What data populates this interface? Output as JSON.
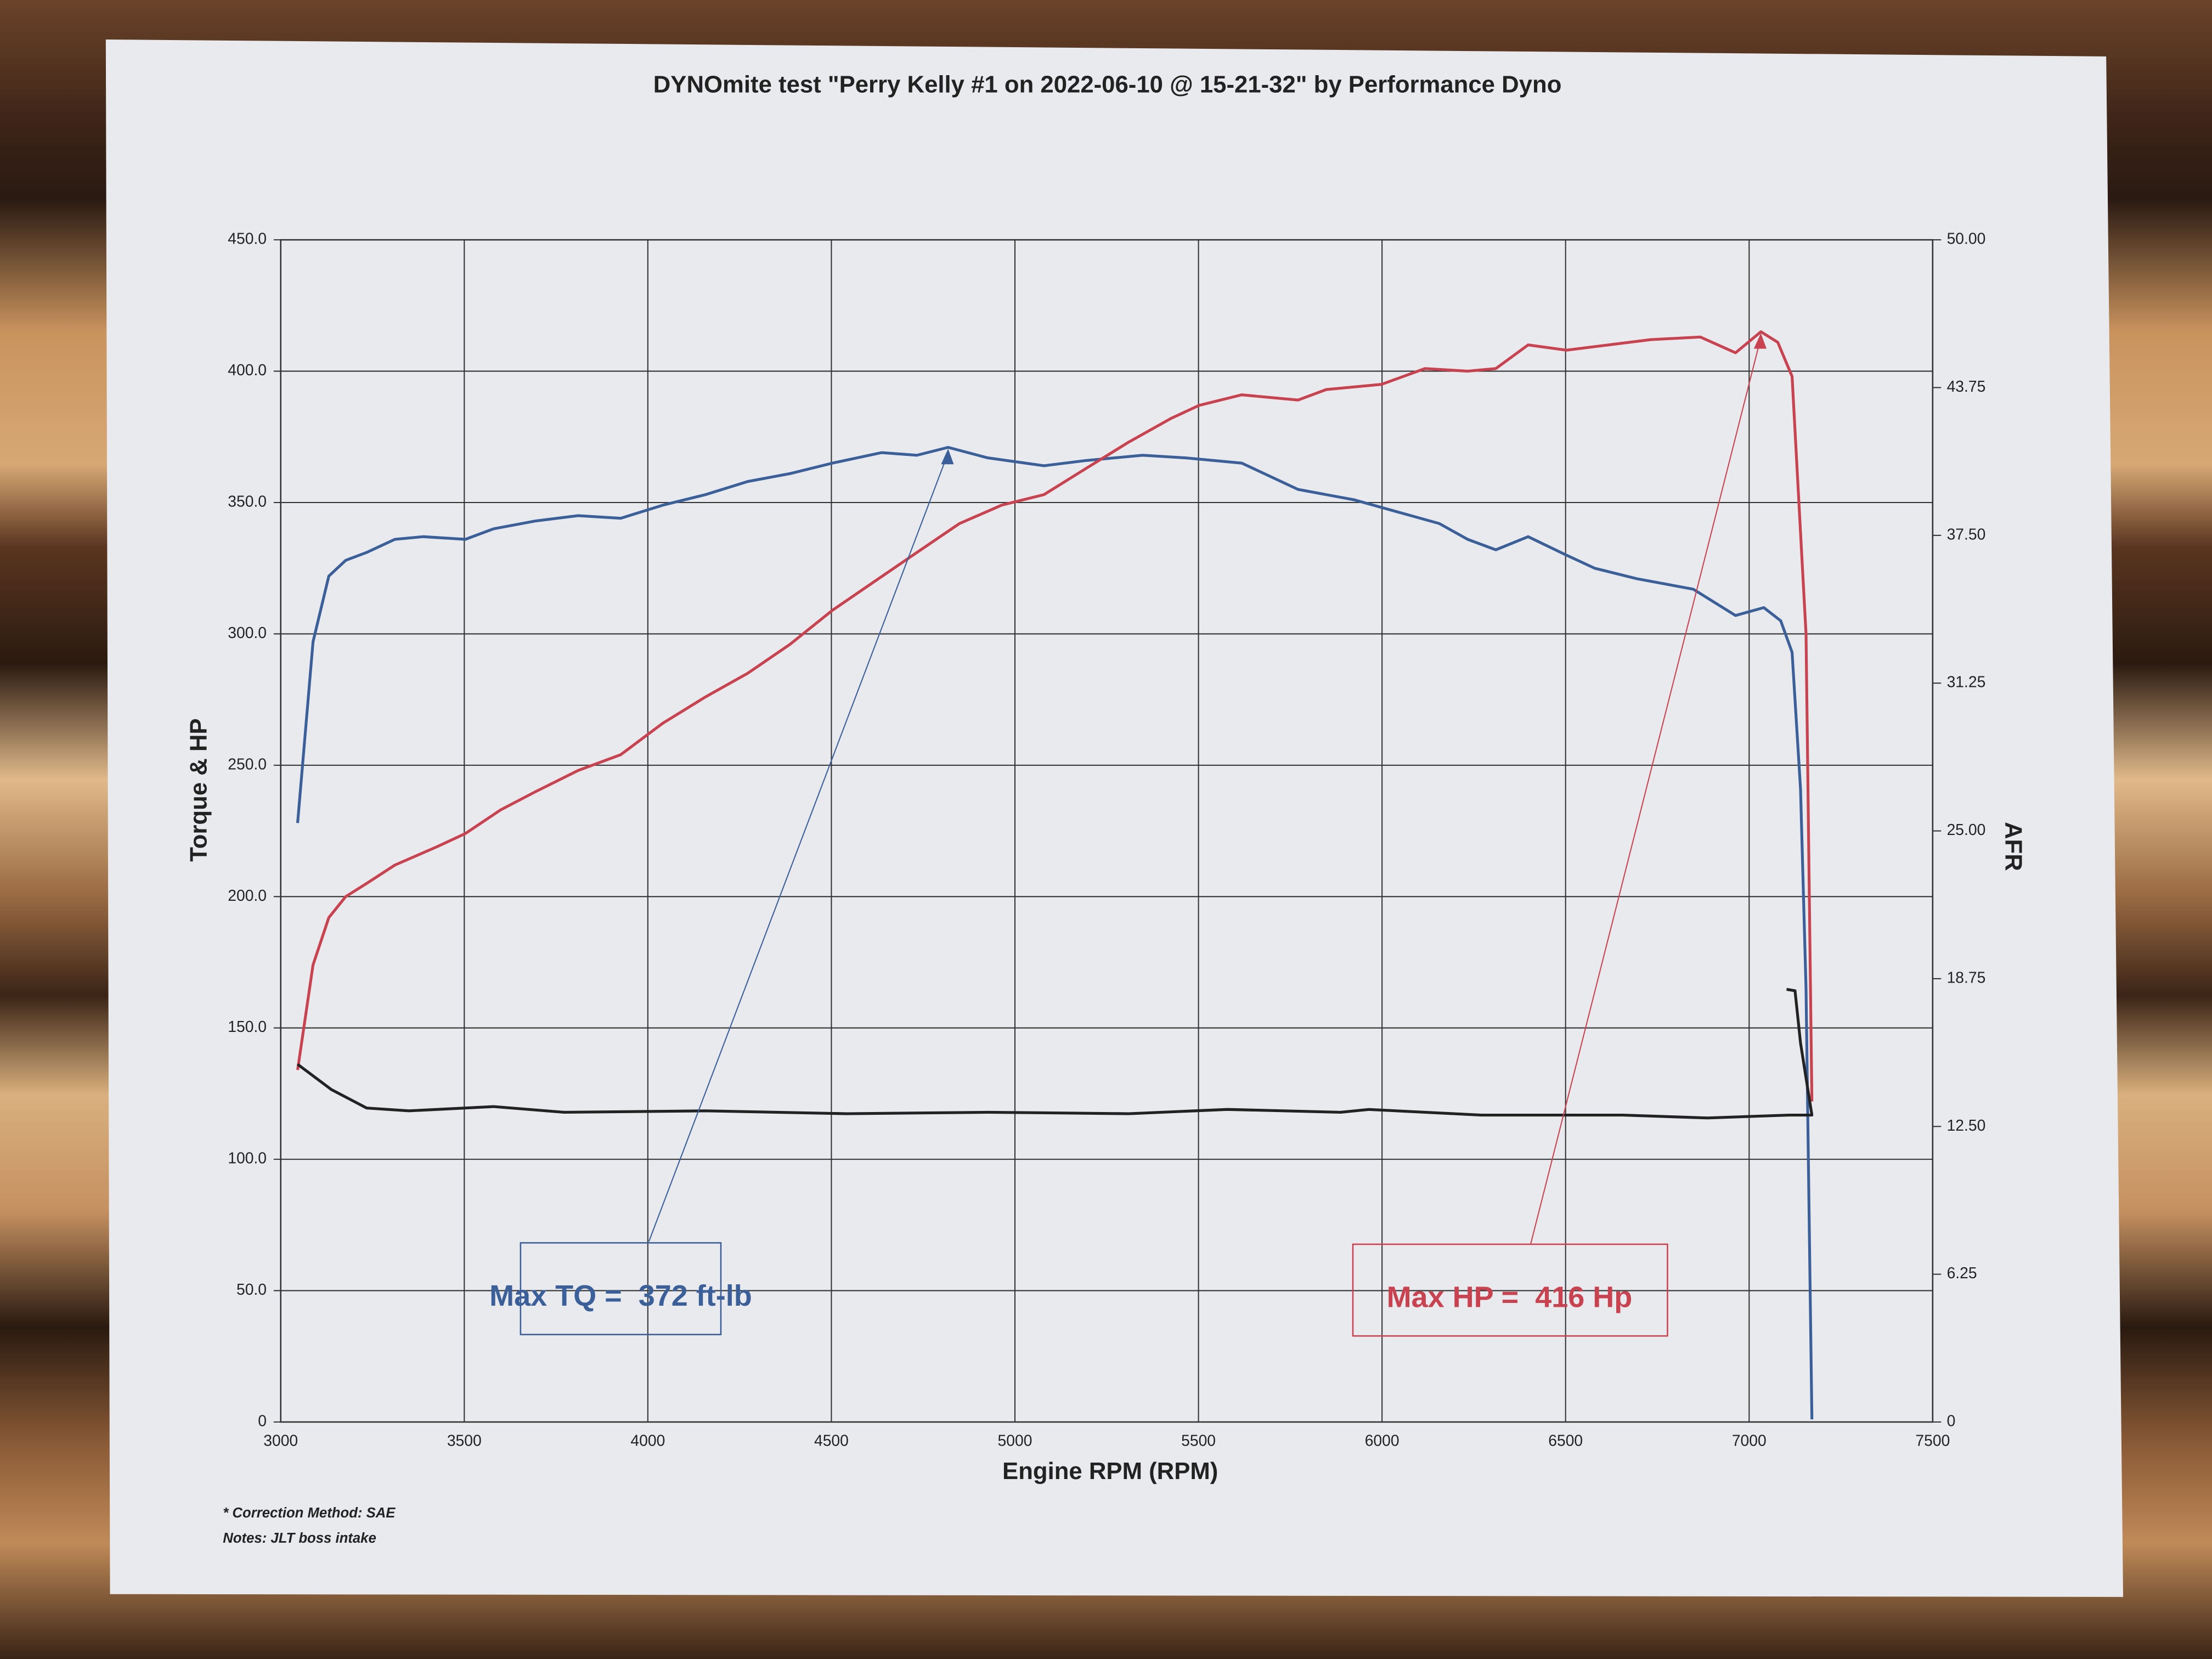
{
  "chart_data": {
    "type": "line",
    "title": "DYNOmite test \"Perry Kelly #1 on 2022-06-10 @ 15-21-32\" by Performance Dyno",
    "xlabel": "Engine RPM (RPM)",
    "ylabel": "Torque & HP",
    "y2label": "AFR",
    "xlim": [
      3000,
      7500
    ],
    "xticks": [
      3000,
      3500,
      4000,
      4500,
      5000,
      5500,
      6000,
      6500,
      7000,
      7500
    ],
    "ylim": [
      0,
      450
    ],
    "yticks": [
      0,
      {
        "value": 50,
        "label": "50.0"
      },
      {
        "value": 100,
        "label": "100.0"
      },
      {
        "value": 150,
        "label": "150.0"
      },
      {
        "value": 200,
        "label": "200.0"
      },
      {
        "value": 250,
        "label": "250.0"
      },
      {
        "value": 300,
        "label": "300.0"
      },
      {
        "value": 350,
        "label": "350.0"
      },
      {
        "value": 400,
        "label": "400.0"
      },
      {
        "value": 450,
        "label": "450.0"
      }
    ],
    "y2lim": [
      0,
      50
    ],
    "y2ticks": [
      0,
      6.25,
      {
        "value": 12.5,
        "label": "12.50"
      },
      18.75,
      {
        "value": 25,
        "label": "25.00"
      },
      31.25,
      {
        "value": 37.5,
        "label": "37.50"
      },
      43.75,
      {
        "value": 50,
        "label": "50.00"
      }
    ],
    "grid": true,
    "series": [
      {
        "color": "#3b5f99",
        "x": [
          3046,
          3088,
          3131,
          3177,
          3234,
          3311,
          3388,
          3503,
          3580,
          3695,
          3810,
          3926,
          4041,
          4157,
          4272,
          4387,
          4503,
          4637,
          4733,
          4818,
          4926,
          5079,
          5194,
          5348,
          5464,
          5618,
          5771,
          5925,
          6079,
          6156,
          6233,
          6310,
          6398,
          6502,
          6579,
          6694,
          6848,
          6963,
          7040,
          7086,
          7117,
          7140,
          7155,
          7171
        ],
        "values": [
          228,
          297,
          322,
          328,
          331,
          336,
          337,
          336,
          340,
          343,
          345,
          344,
          349,
          353,
          358,
          361,
          365,
          369,
          368,
          371,
          367,
          364,
          366,
          368,
          367,
          365,
          355,
          351,
          345,
          342,
          336,
          332,
          337,
          330,
          325,
          321,
          317,
          307,
          310,
          305,
          293,
          241,
          165,
          1
        ]
      },
      {
        "color": "#c8424f",
        "x": [
          3046,
          3088,
          3131,
          3177,
          3234,
          3311,
          3426,
          3503,
          3599,
          3695,
          3810,
          3926,
          4041,
          4157,
          4272,
          4387,
          4503,
          4618,
          4733,
          4849,
          4964,
          5079,
          5194,
          5310,
          5425,
          5502,
          5618,
          5771,
          5848,
          5999,
          6117,
          6233,
          6310,
          6398,
          6502,
          6617,
          6732,
          6867,
          6963,
          7032,
          7078,
          7117,
          7155,
          7171
        ],
        "values": [
          134,
          174,
          192,
          200,
          205,
          212,
          219,
          224,
          233,
          240,
          248,
          254,
          266,
          276,
          285,
          296,
          309,
          320,
          331,
          342,
          349,
          353,
          363,
          373,
          382,
          387,
          391,
          389,
          393,
          395,
          401,
          400,
          401,
          410,
          408,
          410,
          412,
          413,
          407,
          415,
          411,
          398,
          300,
          122
        ]
      },
      {
        "color": "#222222",
        "axis": "y2",
        "x": [
          3046,
          3138,
          3234,
          3349,
          3580,
          3772,
          4157,
          4541,
          4926,
          5310,
          5579,
          5887,
          5964,
          6271,
          6656,
          6886,
          7109,
          7148,
          7171,
          7140,
          7125,
          7102
        ],
        "values": [
          15.13,
          14.06,
          13.28,
          13.16,
          13.34,
          13.1,
          13.16,
          13.04,
          13.1,
          13.04,
          13.22,
          13.1,
          13.22,
          12.98,
          12.98,
          12.86,
          12.98,
          12.98,
          12.98,
          16.03,
          18.24,
          18.3
        ]
      }
    ],
    "annotations": [
      {
        "text": "Max TQ =  372 ft-lb",
        "color": "#3b5f99"
      },
      {
        "text": "Max HP =  416 Hp",
        "color": "#c8424f"
      }
    ],
    "notes": [
      "* Correction Method: SAE",
      "Notes: JLT boss intake"
    ]
  }
}
